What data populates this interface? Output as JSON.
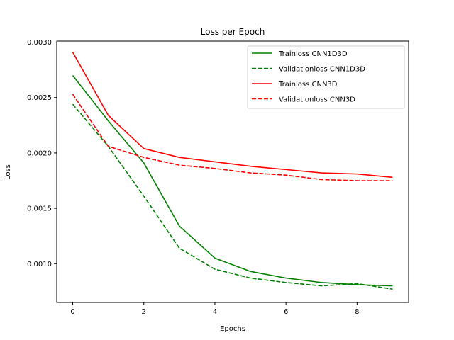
{
  "chart_data": {
    "type": "line",
    "title": "Loss per Epoch",
    "xlabel": "Epochs",
    "ylabel": "Loss",
    "xlim": [
      -0.45,
      9.45
    ],
    "ylim": [
      0.00065,
      0.00301
    ],
    "xticks": [
      0,
      2,
      4,
      6,
      8
    ],
    "xtick_labels": [
      "0",
      "2",
      "4",
      "6",
      "8"
    ],
    "yticks": [
      0.001,
      0.0015,
      0.002,
      0.0025,
      0.003
    ],
    "ytick_labels": [
      "0.0010",
      "0.0015",
      "0.0020",
      "0.0025",
      "0.0030"
    ],
    "grid": false,
    "legend_position": "top-right",
    "x": [
      0,
      1,
      2,
      3,
      4,
      5,
      6,
      7,
      8,
      9
    ],
    "series": [
      {
        "name": "Trainloss CNN1D3D",
        "color": "#008000",
        "style": "solid",
        "values": [
          0.0027,
          0.00229,
          0.00191,
          0.00134,
          0.00105,
          0.00093,
          0.00087,
          0.00083,
          0.00081,
          0.0008
        ]
      },
      {
        "name": "Validationloss CNN1D3D",
        "color": "#008000",
        "style": "dashed",
        "values": [
          0.00244,
          0.00206,
          0.00161,
          0.00114,
          0.00095,
          0.00087,
          0.00083,
          0.0008,
          0.00082,
          0.00077
        ]
      },
      {
        "name": "Trainloss CNN3D",
        "color": "#ff0000",
        "style": "solid",
        "values": [
          0.00291,
          0.00234,
          0.00204,
          0.00196,
          0.00192,
          0.00188,
          0.00185,
          0.00182,
          0.00181,
          0.00178
        ]
      },
      {
        "name": "Validationloss CNN3D",
        "color": "#ff0000",
        "style": "dashed",
        "values": [
          0.00253,
          0.00206,
          0.00196,
          0.00189,
          0.00186,
          0.00182,
          0.0018,
          0.00176,
          0.00175,
          0.00175
        ]
      }
    ]
  }
}
